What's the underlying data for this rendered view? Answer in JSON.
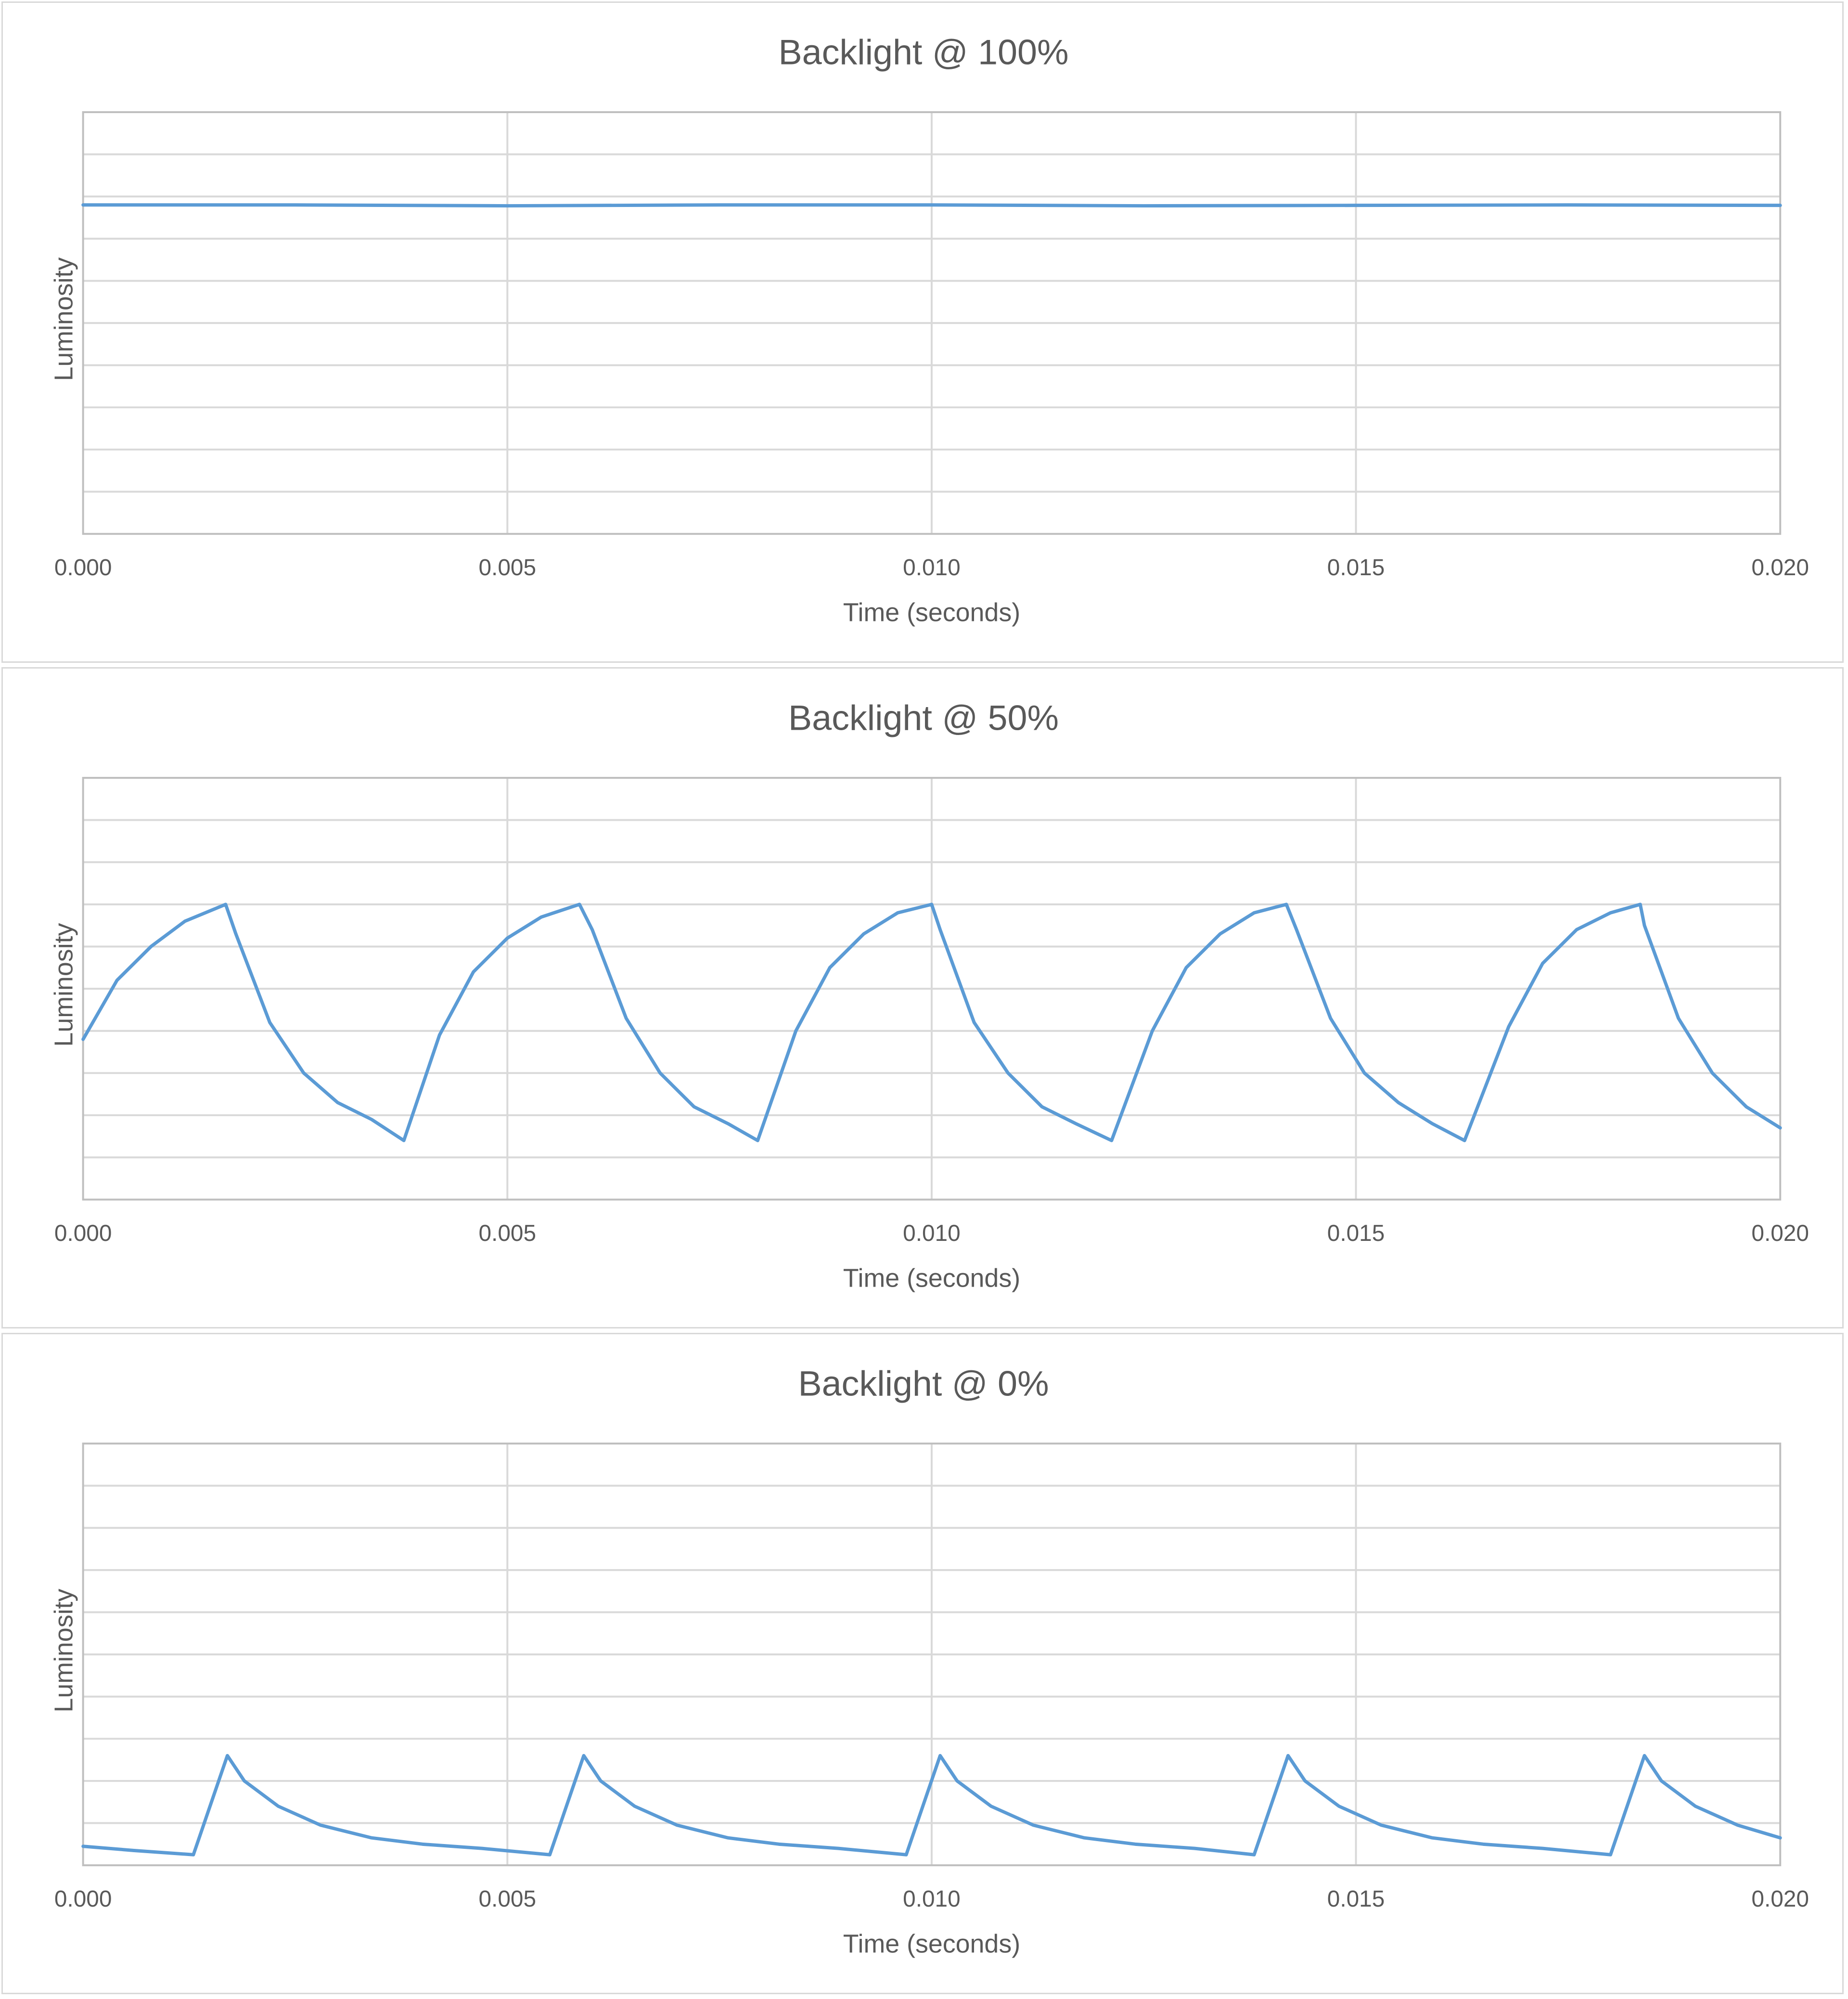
{
  "colors": {
    "series": "#5b9bd5",
    "grid": "#d9d9d9",
    "text": "#595959"
  },
  "chart_data": [
    {
      "type": "line",
      "title": "Backlight @ 100%",
      "xlabel": "Time (seconds)",
      "ylabel": "Luminosity",
      "xlim": [
        0,
        0.02
      ],
      "ylim": [
        0,
        10
      ],
      "x_ticks": [
        "0.000",
        "0.005",
        "0.010",
        "0.015",
        "0.020"
      ],
      "grid": true,
      "legend": "none",
      "series": [
        {
          "x": [
            0,
            0.0025,
            0.005,
            0.0075,
            0.01,
            0.0125,
            0.015,
            0.0175,
            0.02
          ],
          "y": [
            7.8,
            7.8,
            7.78,
            7.8,
            7.8,
            7.78,
            7.79,
            7.8,
            7.79
          ]
        }
      ]
    },
    {
      "type": "line",
      "title": "Backlight @ 50%",
      "xlabel": "Time (seconds)",
      "ylabel": "Luminosity",
      "xlim": [
        0,
        0.02
      ],
      "ylim": [
        0,
        10
      ],
      "x_ticks": [
        "0.000",
        "0.005",
        "0.010",
        "0.015",
        "0.020"
      ],
      "grid": true,
      "legend": "none",
      "series": [
        {
          "x": [
            0,
            0.0004,
            0.0008,
            0.0012,
            0.00168,
            0.0018,
            0.0022,
            0.0026,
            0.003,
            0.0034,
            0.00378,
            0.0042,
            0.0046,
            0.005,
            0.0054,
            0.00585,
            0.006,
            0.0064,
            0.0068,
            0.0072,
            0.0076,
            0.00795,
            0.0084,
            0.0088,
            0.0092,
            0.0096,
            0.01,
            0.0101,
            0.0105,
            0.0109,
            0.0113,
            0.0117,
            0.01212,
            0.0126,
            0.013,
            0.0134,
            0.0138,
            0.01418,
            0.0143,
            0.0147,
            0.0151,
            0.0155,
            0.0159,
            0.01628,
            0.0168,
            0.0172,
            0.0176,
            0.018,
            0.01835,
            0.0184,
            0.0188,
            0.0192,
            0.0196,
            0.02
          ],
          "y": [
            3.8,
            5.2,
            6.0,
            6.6,
            7.0,
            6.3,
            4.2,
            3.0,
            2.3,
            1.9,
            1.4,
            3.9,
            5.4,
            6.2,
            6.7,
            7.0,
            6.4,
            4.3,
            3.0,
            2.2,
            1.8,
            1.4,
            4.0,
            5.5,
            6.3,
            6.8,
            7.0,
            6.4,
            4.2,
            3.0,
            2.2,
            1.8,
            1.4,
            4.0,
            5.5,
            6.3,
            6.8,
            7.0,
            6.4,
            4.3,
            3.0,
            2.3,
            1.8,
            1.4,
            4.1,
            5.6,
            6.4,
            6.8,
            7.0,
            6.5,
            4.3,
            3.0,
            2.2,
            1.7
          ]
        }
      ]
    },
    {
      "type": "line",
      "title": "Backlight @ 0%",
      "xlabel": "Time (seconds)",
      "ylabel": "Luminosity",
      "xlim": [
        0,
        0.02
      ],
      "ylim": [
        0,
        10
      ],
      "x_ticks": [
        "0.000",
        "0.005",
        "0.010",
        "0.015",
        "0.020"
      ],
      "grid": true,
      "legend": "none",
      "series": [
        {
          "x": [
            0,
            0.0006,
            0.0013,
            0.0017,
            0.0019,
            0.0023,
            0.0028,
            0.0034,
            0.004,
            0.0047,
            0.0055,
            0.0059,
            0.0061,
            0.0065,
            0.007,
            0.0076,
            0.0082,
            0.0089,
            0.0097,
            0.0101,
            0.0103,
            0.0107,
            0.0112,
            0.0118,
            0.0124,
            0.0131,
            0.0138,
            0.0142,
            0.0144,
            0.0148,
            0.0153,
            0.0159,
            0.0165,
            0.0172,
            0.018,
            0.0184,
            0.0186,
            0.019,
            0.0195,
            0.02
          ],
          "y": [
            0.45,
            0.35,
            0.25,
            2.6,
            2.0,
            1.4,
            0.95,
            0.65,
            0.5,
            0.4,
            0.25,
            2.6,
            2.0,
            1.4,
            0.95,
            0.65,
            0.5,
            0.4,
            0.25,
            2.6,
            2.0,
            1.4,
            0.95,
            0.65,
            0.5,
            0.4,
            0.25,
            2.6,
            2.0,
            1.4,
            0.95,
            0.65,
            0.5,
            0.4,
            0.25,
            2.6,
            2.0,
            1.4,
            0.95,
            0.65
          ]
        }
      ]
    }
  ]
}
